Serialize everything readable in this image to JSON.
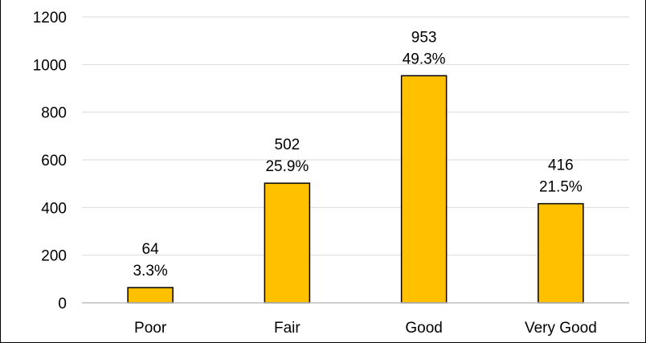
{
  "chart_data": {
    "type": "bar",
    "categories": [
      "Poor",
      "Fair",
      "Good",
      "Very Good"
    ],
    "values": [
      64,
      502,
      953,
      416
    ],
    "percent_labels": [
      "3.3%",
      "25.9%",
      "49.3%",
      "21.5%"
    ],
    "title": "",
    "xlabel": "",
    "ylabel": "",
    "ylim": [
      0,
      1200
    ],
    "yticks": [
      0,
      200,
      400,
      600,
      800,
      1000,
      1200
    ],
    "grid": "horizontal",
    "legend": "none",
    "colors": {
      "bar_fill": "#FFC000",
      "bar_stroke": "#000000",
      "gridline": "#D9D9D9",
      "axis": "#BFBFBF",
      "text": "#000000"
    }
  }
}
